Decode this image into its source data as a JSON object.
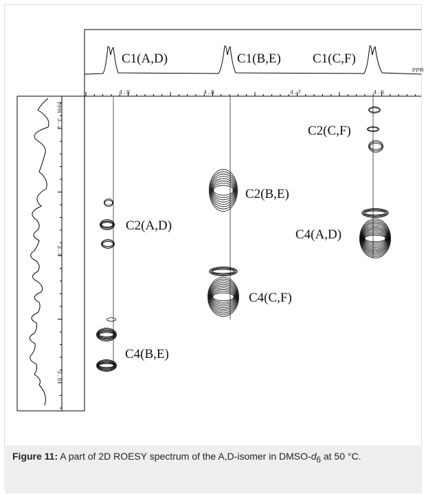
{
  "figure": {
    "peak_labels_top": [
      "C1(A,D)",
      "C1(B,E)",
      "C1(C,F)"
    ],
    "cross_peak_labels": [
      "C2(C,F)",
      "C2(B,E)",
      "C2(A,D)",
      "C4(A,D)",
      "C4(C,F)",
      "C4(B,E)"
    ],
    "x_axis": {
      "unit": "PPM",
      "ticks": [
        "4.9",
        "4.8",
        "4.7",
        "4.6"
      ]
    },
    "y_axis": {
      "unit": "PPM",
      "ticks": [
        "3.2",
        "3.4",
        "3.6"
      ]
    }
  },
  "caption": {
    "label": "Figure 11:",
    "text": " A part of 2D ROESY spectrum of the A,D-isomer in DMSO-",
    "italic": "d",
    "subscript": "6",
    "tail": " at 50 °C."
  }
}
